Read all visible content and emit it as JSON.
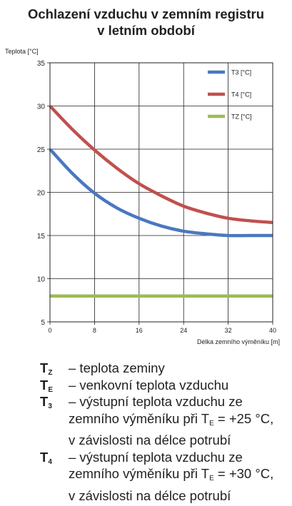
{
  "title_lines": [
    "Ochlazení vzduchu v zemním registru",
    "v letním období"
  ],
  "chart_data": {
    "type": "line",
    "ylabel": "Teplota [°C]",
    "xlabel": "Délka zemního výměníku [m]",
    "xlim": [
      0,
      40
    ],
    "ylim": [
      5,
      35
    ],
    "xticks": [
      0,
      8,
      16,
      24,
      32,
      40
    ],
    "yticks": [
      5,
      10,
      15,
      20,
      25,
      30,
      35
    ],
    "grid": true,
    "legend_position": "top-right",
    "series": [
      {
        "name": "T3 [°C]",
        "color": "#4a78c0",
        "x": [
          0,
          4,
          8,
          12,
          16,
          20,
          24,
          28,
          32,
          36,
          40
        ],
        "y": [
          25.0,
          22.2,
          19.9,
          18.2,
          17.0,
          16.1,
          15.5,
          15.2,
          15.0,
          15.0,
          15.0
        ]
      },
      {
        "name": "T4 [°C]",
        "color": "#c0504d",
        "x": [
          0,
          4,
          8,
          12,
          16,
          20,
          24,
          28,
          32,
          36,
          40
        ],
        "y": [
          30.0,
          27.3,
          24.9,
          22.8,
          21.0,
          19.6,
          18.4,
          17.6,
          17.0,
          16.7,
          16.5
        ]
      },
      {
        "name": "TZ [°C]",
        "color": "#9bbb59",
        "x": [
          0,
          40
        ],
        "y": [
          8.0,
          8.0
        ]
      }
    ]
  },
  "notes": [
    {
      "sym": "T",
      "sub": "Z",
      "lines": [
        "– teplota zeminy"
      ]
    },
    {
      "sym": "T",
      "sub": "E",
      "lines": [
        "– venkovní teplota vzduchu"
      ]
    },
    {
      "sym": "T",
      "sub": "3",
      "lines": [
        "– výstupní teplota vzduchu ze",
        "zemního výměníku při T",
        "v závislosti na délce potrubí"
      ],
      "te_sub": "E",
      "te_tail": " = +25 °C,"
    },
    {
      "sym": "T",
      "sub": "4",
      "lines": [
        "– výstupní teplota vzduchu ze",
        "zemního výměníku při T",
        "v závislosti na délce potrubí"
      ],
      "te_sub": "E",
      "te_tail": " = +30 °C,"
    }
  ]
}
